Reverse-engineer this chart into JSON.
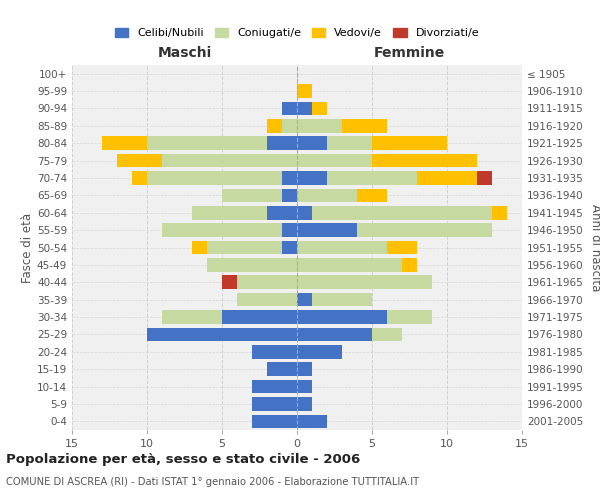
{
  "age_groups": [
    "0-4",
    "5-9",
    "10-14",
    "15-19",
    "20-24",
    "25-29",
    "30-34",
    "35-39",
    "40-44",
    "45-49",
    "50-54",
    "55-59",
    "60-64",
    "65-69",
    "70-74",
    "75-79",
    "80-84",
    "85-89",
    "90-94",
    "95-99",
    "100+"
  ],
  "birth_years": [
    "2001-2005",
    "1996-2000",
    "1991-1995",
    "1986-1990",
    "1981-1985",
    "1976-1980",
    "1971-1975",
    "1966-1970",
    "1961-1965",
    "1956-1960",
    "1951-1955",
    "1946-1950",
    "1941-1945",
    "1936-1940",
    "1931-1935",
    "1926-1930",
    "1921-1925",
    "1916-1920",
    "1911-1915",
    "1906-1910",
    "≤ 1905"
  ],
  "male_celibi": [
    3,
    3,
    3,
    2,
    3,
    10,
    5,
    0,
    0,
    0,
    1,
    1,
    2,
    1,
    1,
    0,
    2,
    0,
    1,
    0,
    0
  ],
  "male_coniugati": [
    0,
    0,
    0,
    0,
    0,
    0,
    4,
    4,
    4,
    6,
    5,
    8,
    5,
    4,
    9,
    9,
    8,
    1,
    0,
    0,
    0
  ],
  "male_vedovi": [
    0,
    0,
    0,
    0,
    0,
    0,
    0,
    0,
    0,
    0,
    1,
    0,
    0,
    0,
    1,
    3,
    3,
    1,
    0,
    0,
    0
  ],
  "male_divorziati": [
    0,
    0,
    0,
    0,
    0,
    0,
    0,
    0,
    1,
    0,
    0,
    0,
    0,
    0,
    0,
    0,
    0,
    0,
    0,
    0,
    0
  ],
  "female_celibi": [
    2,
    1,
    1,
    1,
    3,
    5,
    6,
    1,
    0,
    0,
    0,
    4,
    1,
    0,
    2,
    0,
    2,
    0,
    1,
    0,
    0
  ],
  "female_coniugati": [
    0,
    0,
    0,
    0,
    0,
    2,
    3,
    4,
    9,
    7,
    6,
    9,
    12,
    4,
    6,
    5,
    3,
    3,
    0,
    0,
    0
  ],
  "female_vedovi": [
    0,
    0,
    0,
    0,
    0,
    0,
    0,
    0,
    0,
    1,
    2,
    0,
    1,
    2,
    4,
    7,
    5,
    3,
    1,
    1,
    0
  ],
  "female_divorziati": [
    0,
    0,
    0,
    0,
    0,
    0,
    0,
    0,
    0,
    0,
    0,
    0,
    0,
    0,
    1,
    0,
    0,
    0,
    0,
    0,
    0
  ],
  "colors": {
    "celibi": "#4472c4",
    "coniugati": "#c5d9a0",
    "vedovi": "#ffc000",
    "divorziati": "#c0392b"
  },
  "title": "Popolazione per età, sesso e stato civile - 2006",
  "subtitle": "COMUNE DI ASCREA (RI) - Dati ISTAT 1° gennaio 2006 - Elaborazione TUTTITALIA.IT",
  "xlabel_left": "Maschi",
  "xlabel_right": "Femmine",
  "ylabel_left": "Fasce di età",
  "ylabel_right": "Anni di nascita",
  "xlim": 15,
  "background_color": "#ffffff",
  "plot_bg": "#f0f0f0",
  "legend_labels": [
    "Celibi/Nubili",
    "Coniugati/e",
    "Vedovi/e",
    "Divorziati/e"
  ],
  "grid_color": "#cccccc"
}
